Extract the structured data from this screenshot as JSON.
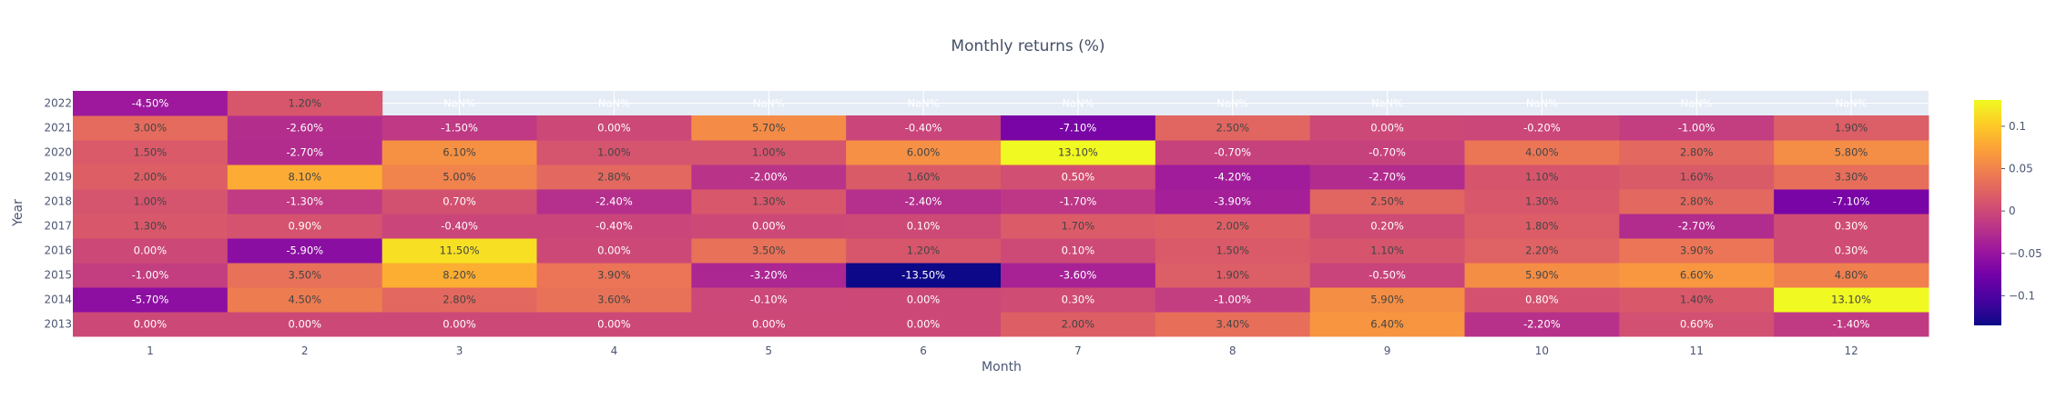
{
  "chart_data": {
    "type": "heatmap",
    "title": "Monthly returns (%)",
    "xlabel": "Month",
    "ylabel": "Year",
    "x": [
      "1",
      "2",
      "3",
      "4",
      "5",
      "6",
      "7",
      "8",
      "9",
      "10",
      "11",
      "12"
    ],
    "y": [
      "2013",
      "2014",
      "2015",
      "2016",
      "2017",
      "2018",
      "2019",
      "2020",
      "2021",
      "2022"
    ],
    "z": [
      [
        0.0,
        0.0,
        0.0,
        0.0,
        0.0,
        0.0,
        0.02,
        0.034,
        0.064,
        -0.022,
        0.006,
        -0.014
      ],
      [
        -0.057,
        0.045,
        0.028,
        0.036,
        -0.001,
        0.0,
        0.003,
        -0.01,
        0.059,
        0.008,
        0.014,
        0.131
      ],
      [
        -0.01,
        0.035,
        0.082,
        0.039,
        -0.032,
        -0.135,
        -0.036,
        0.019,
        -0.005,
        0.059,
        0.066,
        0.048
      ],
      [
        0.0,
        -0.059,
        0.115,
        0.0,
        0.035,
        0.012,
        0.001,
        0.015,
        0.011,
        0.022,
        0.039,
        0.003
      ],
      [
        0.013,
        0.009,
        -0.004,
        -0.004,
        0.0,
        0.001,
        0.017,
        0.02,
        0.002,
        0.018,
        -0.027,
        0.003
      ],
      [
        0.01,
        -0.013,
        0.007,
        -0.024,
        0.013,
        -0.024,
        -0.017,
        -0.039,
        0.025,
        0.013,
        0.028,
        -0.071
      ],
      [
        0.02,
        0.081,
        0.05,
        0.028,
        -0.02,
        0.016,
        0.005,
        -0.042,
        -0.027,
        0.011,
        0.016,
        0.033
      ],
      [
        0.015,
        -0.027,
        0.061,
        0.01,
        0.01,
        0.06,
        0.131,
        -0.007,
        -0.007,
        0.04,
        0.028,
        0.058
      ],
      [
        0.03,
        -0.026,
        -0.015,
        0.0,
        0.057,
        -0.004,
        -0.071,
        0.025,
        0.0,
        -0.002,
        -0.01,
        0.019
      ],
      [
        -0.045,
        0.012,
        null,
        null,
        null,
        null,
        null,
        null,
        null,
        null,
        null,
        null
      ]
    ],
    "text": [
      [
        "0.00%",
        "0.00%",
        "0.00%",
        "0.00%",
        "0.00%",
        "0.00%",
        "2.00%",
        "3.40%",
        "6.40%",
        "-2.20%",
        "0.60%",
        "-1.40%"
      ],
      [
        "-5.70%",
        "4.50%",
        "2.80%",
        "3.60%",
        "-0.10%",
        "0.00%",
        "0.30%",
        "-1.00%",
        "5.90%",
        "0.80%",
        "1.40%",
        "13.10%"
      ],
      [
        "-1.00%",
        "3.50%",
        "8.20%",
        "3.90%",
        "-3.20%",
        "-13.50%",
        "-3.60%",
        "1.90%",
        "-0.50%",
        "5.90%",
        "6.60%",
        "4.80%"
      ],
      [
        "0.00%",
        "-5.90%",
        "11.50%",
        "0.00%",
        "3.50%",
        "1.20%",
        "0.10%",
        "1.50%",
        "1.10%",
        "2.20%",
        "3.90%",
        "0.30%"
      ],
      [
        "1.30%",
        "0.90%",
        "-0.40%",
        "-0.40%",
        "0.00%",
        "0.10%",
        "1.70%",
        "2.00%",
        "0.20%",
        "1.80%",
        "-2.70%",
        "0.30%"
      ],
      [
        "1.00%",
        "-1.30%",
        "0.70%",
        "-2.40%",
        "1.30%",
        "-2.40%",
        "-1.70%",
        "-3.90%",
        "2.50%",
        "1.30%",
        "2.80%",
        "-7.10%"
      ],
      [
        "2.00%",
        "8.10%",
        "5.00%",
        "2.80%",
        "-2.00%",
        "1.60%",
        "0.50%",
        "-4.20%",
        "-2.70%",
        "1.10%",
        "1.60%",
        "3.30%"
      ],
      [
        "1.50%",
        "-2.70%",
        "6.10%",
        "1.00%",
        "1.00%",
        "6.00%",
        "13.10%",
        "-0.70%",
        "-0.70%",
        "4.00%",
        "2.80%",
        "5.80%"
      ],
      [
        "3.00%",
        "-2.60%",
        "-1.50%",
        "0.00%",
        "5.70%",
        "-0.40%",
        "-7.10%",
        "2.50%",
        "0.00%",
        "-0.20%",
        "-1.00%",
        "1.90%"
      ],
      [
        "-4.50%",
        "1.20%",
        "NaN%",
        "NaN%",
        "NaN%",
        "NaN%",
        "NaN%",
        "NaN%",
        "NaN%",
        "NaN%",
        "NaN%",
        "NaN%"
      ]
    ],
    "zmin": -0.135,
    "zmax": 0.131,
    "colorscale": "plasma",
    "colorbar": {
      "tickvals": [
        -0.1,
        -0.05,
        0,
        0.05,
        0.1
      ],
      "ticktext": [
        "−0.1",
        "−0.05",
        "0",
        "0.05",
        "0.1"
      ]
    },
    "grid": true,
    "plot_bgcolor": "#e5ecf6"
  }
}
